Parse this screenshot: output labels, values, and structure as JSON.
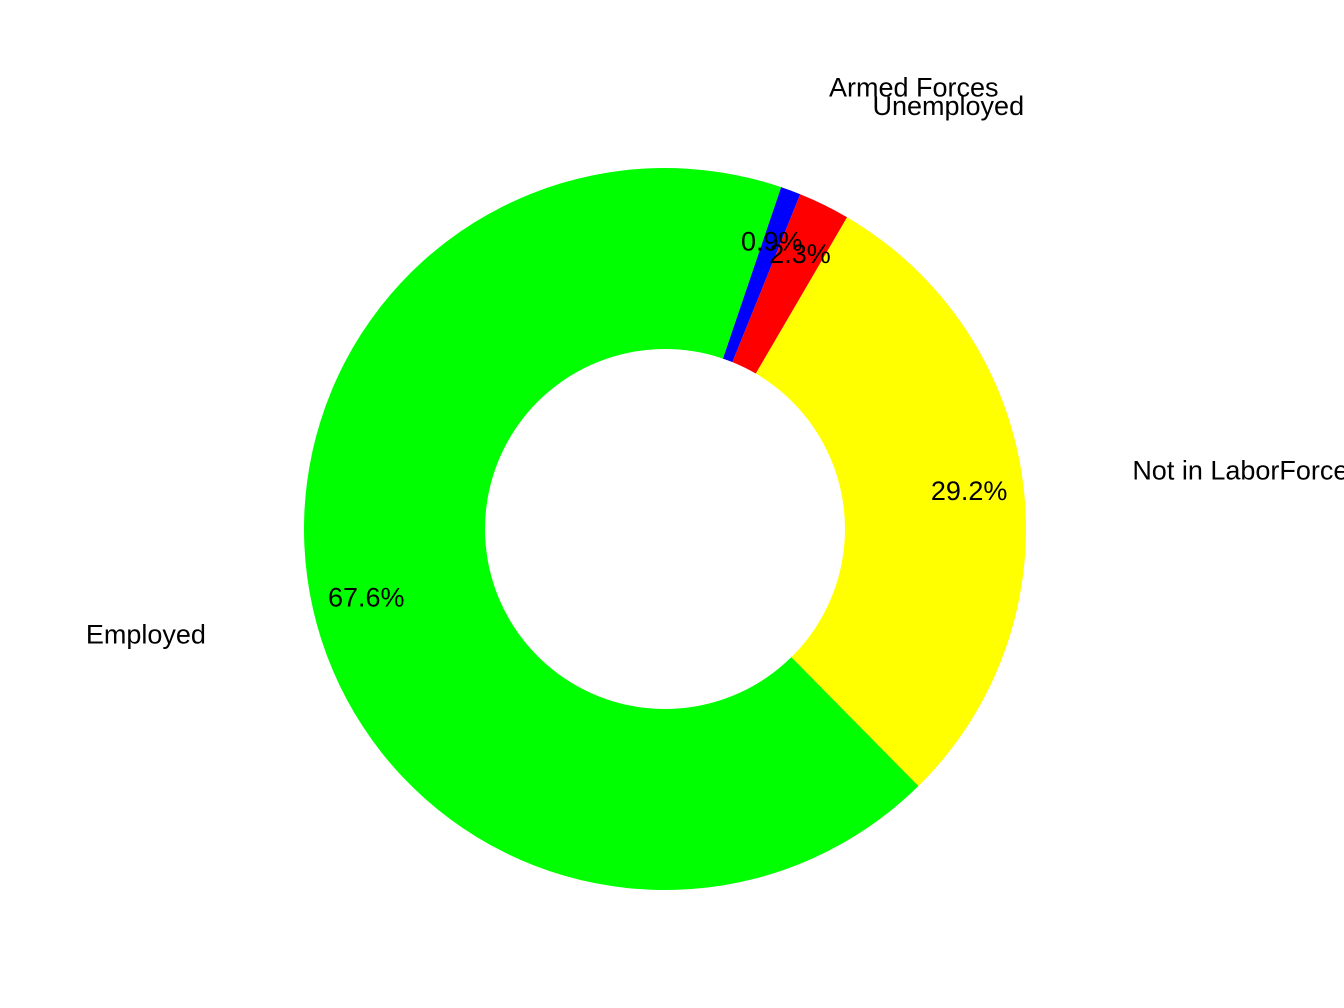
{
  "chart_data": {
    "type": "pie",
    "donut": true,
    "title": "",
    "slices": [
      {
        "label": "Armed Forces",
        "value": 0.9,
        "value_label": "0.9%",
        "color": "#0000FF"
      },
      {
        "label": "Employed",
        "value": 67.6,
        "value_label": "67.6%",
        "color": "#00FF00"
      },
      {
        "label": "Not in LaborForce",
        "value": 29.2,
        "value_label": "29.2%",
        "color": "#FFFF00"
      },
      {
        "label": "Unemployed",
        "value": 2.3,
        "value_label": "2.3%",
        "color": "#FF0000"
      }
    ],
    "legend": "none"
  }
}
